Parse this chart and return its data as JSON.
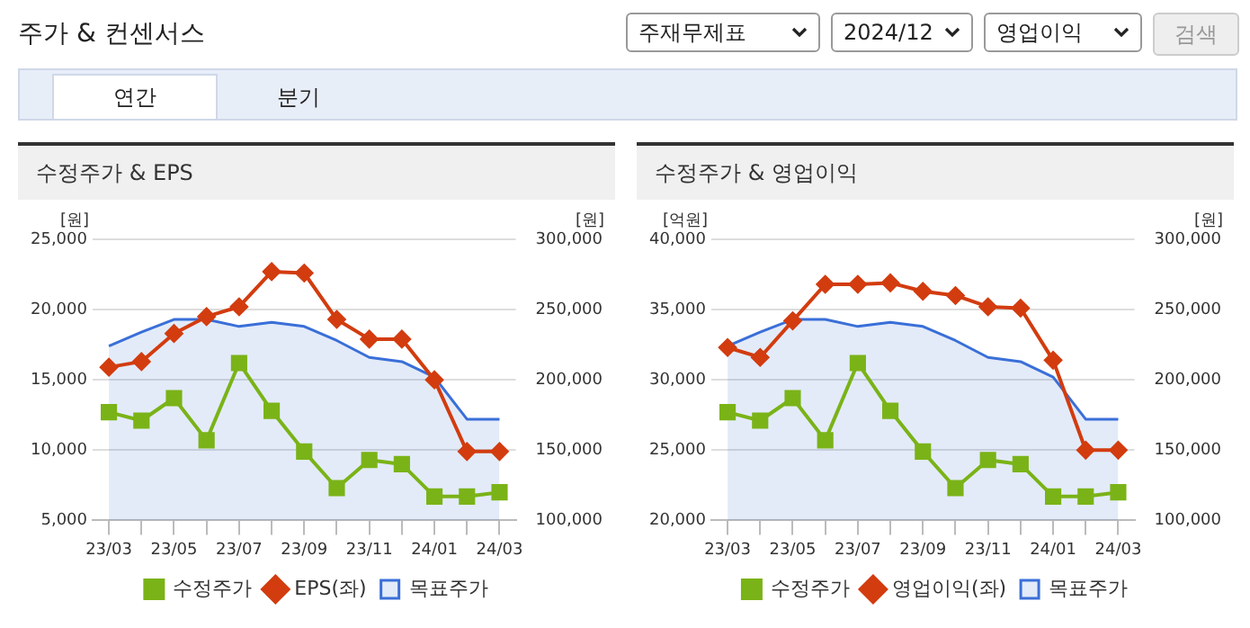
{
  "chart_data": [
    {
      "type": "other",
      "title": "주가 & 컨센서스",
      "annotations": [
        "주재무제표",
        "2024/12",
        "영업이익",
        "검색",
        "연간",
        "분기"
      ]
    },
    {
      "type": "line",
      "title": "수정주가 & EPS",
      "ylabel": "[원]",
      "y2label": "[원]",
      "categories": [
        "23/03",
        null,
        "23/05",
        null,
        "23/07",
        null,
        "23/09",
        null,
        "23/11",
        null,
        "24/01",
        null,
        "24/03"
      ],
      "ylim": [
        5000,
        25000
      ],
      "yticks": [
        {
          "value": 5000,
          "label": "5,000"
        },
        {
          "value": 10000,
          "label": "10,000"
        },
        {
          "value": 15000,
          "label": "15,000"
        },
        {
          "value": 20000,
          "label": "20,000"
        },
        {
          "value": 25000,
          "label": "25,000"
        }
      ],
      "y2lim": [
        100000,
        300000
      ],
      "y2ticks": [
        {
          "value": 100000,
          "label": "100,000"
        },
        {
          "value": 150000,
          "label": "150,000"
        },
        {
          "value": 200000,
          "label": "200,000"
        },
        {
          "value": 250000,
          "label": "250,000"
        },
        {
          "value": 300000,
          "label": "300,000"
        }
      ],
      "grid": "y",
      "legend": "bottom",
      "series": [
        {
          "name": "목표주가",
          "type": "area",
          "axis": "y2",
          "color": "#3a6fd8",
          "marker": "none",
          "values": [
            224000,
            234000,
            243000,
            243000,
            238000,
            241000,
            238000,
            228000,
            216000,
            213000,
            202000,
            172000,
            172000
          ]
        },
        {
          "name": "EPS(좌)",
          "type": "line",
          "color": "#d23c0f",
          "marker": "diamond",
          "values": [
            15900,
            16300,
            18300,
            19500,
            20200,
            22700,
            22600,
            19300,
            17900,
            17900,
            15000,
            9900,
            9900
          ]
        },
        {
          "name": "수정주가",
          "type": "line",
          "axis": "y2",
          "color": "#7ab317",
          "marker": "square",
          "values": [
            177000,
            171000,
            187000,
            157000,
            212000,
            178000,
            149000,
            123000,
            143000,
            140000,
            117000,
            117000,
            120000
          ]
        }
      ]
    },
    {
      "type": "line",
      "title": "수정주가 & 영업이익",
      "ylabel": "[억원]",
      "y2label": "[원]",
      "categories": [
        "23/03",
        null,
        "23/05",
        null,
        "23/07",
        null,
        "23/09",
        null,
        "23/11",
        null,
        "24/01",
        null,
        "24/03"
      ],
      "ylim": [
        20000,
        40000
      ],
      "yticks": [
        {
          "value": 20000,
          "label": "20,000"
        },
        {
          "value": 25000,
          "label": "25,000"
        },
        {
          "value": 30000,
          "label": "30,000"
        },
        {
          "value": 35000,
          "label": "35,000"
        },
        {
          "value": 40000,
          "label": "40,000"
        }
      ],
      "y2lim": [
        100000,
        300000
      ],
      "y2ticks": [
        {
          "value": 100000,
          "label": "100,000"
        },
        {
          "value": 150000,
          "label": "150,000"
        },
        {
          "value": 200000,
          "label": "200,000"
        },
        {
          "value": 250000,
          "label": "250,000"
        },
        {
          "value": 300000,
          "label": "300,000"
        }
      ],
      "grid": "y",
      "legend": "bottom",
      "series": [
        {
          "name": "목표주가",
          "type": "area",
          "axis": "y2",
          "color": "#3a6fd8",
          "marker": "none",
          "values": [
            224000,
            234000,
            243000,
            243000,
            238000,
            241000,
            238000,
            228000,
            216000,
            213000,
            202000,
            172000,
            172000
          ]
        },
        {
          "name": "영업이익(좌)",
          "type": "line",
          "color": "#d23c0f",
          "marker": "diamond",
          "values": [
            32300,
            31600,
            34200,
            36800,
            36800,
            36900,
            36300,
            36000,
            35200,
            35100,
            31400,
            25000,
            25000
          ]
        },
        {
          "name": "수정주가",
          "type": "line",
          "axis": "y2",
          "color": "#7ab317",
          "marker": "square",
          "values": [
            177000,
            171000,
            187000,
            157000,
            212000,
            178000,
            149000,
            123000,
            143000,
            140000,
            117000,
            117000,
            120000
          ]
        }
      ]
    }
  ]
}
